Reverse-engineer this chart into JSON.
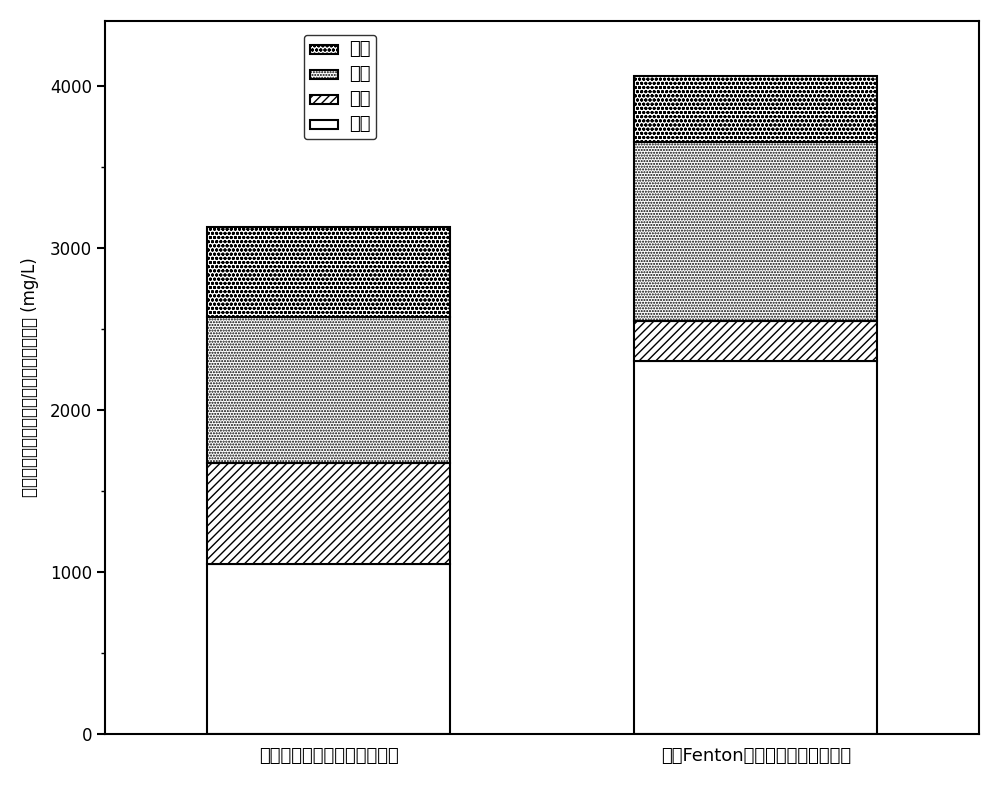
{
  "categories": [
    "不投加材料的水解酸化反应器",
    "投加Fenton铁泥的水解酸化反应器"
  ],
  "acetic": [
    1050,
    2300
  ],
  "propionic": [
    620,
    250
  ],
  "butyric": [
    900,
    1100
  ],
  "valeric": [
    560,
    410
  ],
  "ylabel": "水解酸化反应器出料中挥发性有机酸浓度 (mg/L)",
  "ylim": [
    0,
    4400
  ],
  "yticks": [
    0,
    1000,
    2000,
    3000,
    4000
  ],
  "legend_labels_ordered": [
    "戊酸",
    "丁酸",
    "丙酸",
    "乙酸"
  ],
  "bar_width": 0.25,
  "background_color": "#ffffff",
  "edge_color": "#000000",
  "x_positions": [
    0.28,
    0.72
  ]
}
